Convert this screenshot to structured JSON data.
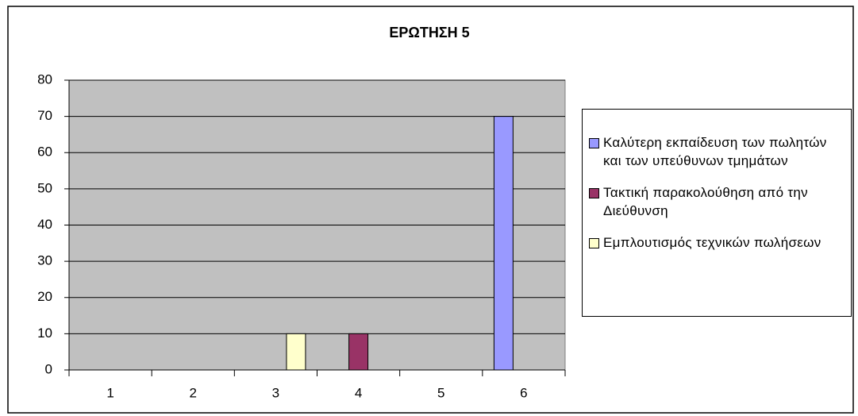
{
  "chart_data": {
    "type": "bar",
    "title": "ΕΡΩΤΗΣΗ 5",
    "categories": [
      "1",
      "2",
      "3",
      "4",
      "5",
      "6"
    ],
    "series": [
      {
        "name": "Καλύτερη εκπαίδευση των πωλητών και των υπεύθυνων τμημάτων",
        "color": "#9999ff",
        "values": [
          null,
          null,
          null,
          null,
          null,
          70
        ]
      },
      {
        "name": "Τακτική παρακολούθηση από την Διεύθυνση",
        "color": "#993366",
        "values": [
          null,
          null,
          null,
          10,
          null,
          null
        ]
      },
      {
        "name": "Εμπλουτισμός τεχνικών πωλήσεων",
        "color": "#ffffcc",
        "values": [
          null,
          null,
          10,
          null,
          null,
          null
        ]
      }
    ],
    "ylim": [
      0,
      80
    ],
    "yticks": [
      0,
      10,
      20,
      30,
      40,
      50,
      60,
      70,
      80
    ],
    "grid": true,
    "legend": "right"
  }
}
